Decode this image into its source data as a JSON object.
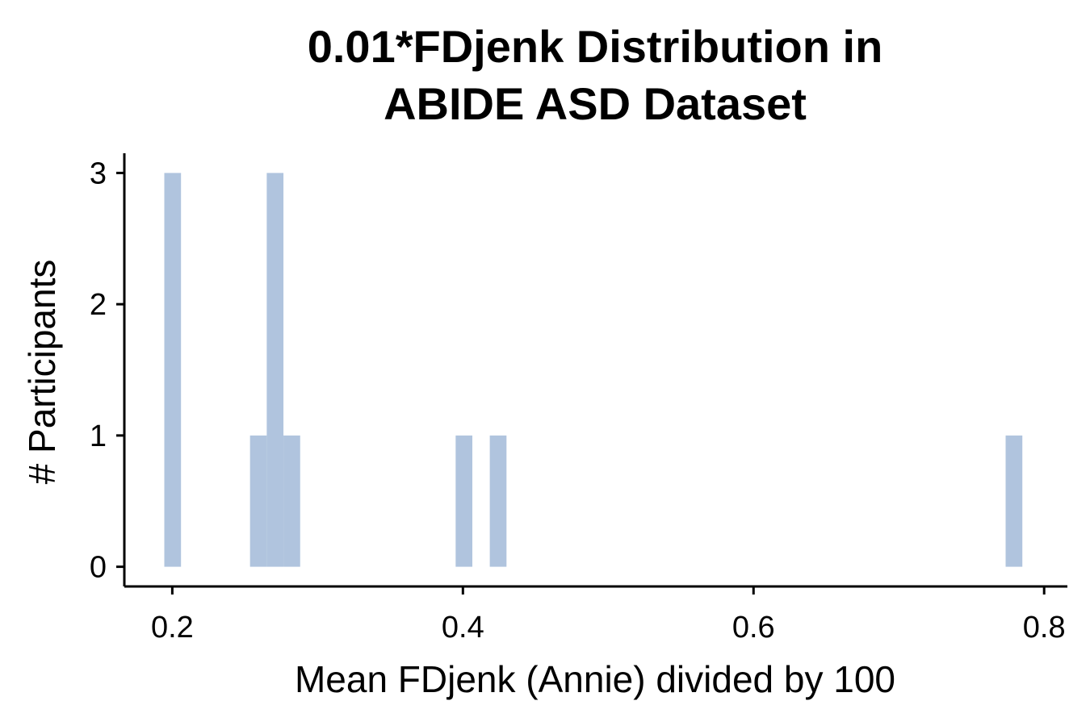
{
  "chart_data": {
    "type": "bar",
    "title_lines": [
      "0.01*FDjenk Distribution in",
      "ABIDE ASD Dataset"
    ],
    "xlabel": "Mean FDjenk (Annie) divided by 100",
    "ylabel": "# Participants",
    "xlim": [
      0.167,
      0.816
    ],
    "ylim": [
      -0.15,
      3.15
    ],
    "xticks": [
      {
        "value": 0.2,
        "label": "0.2"
      },
      {
        "value": 0.4,
        "label": "0.4"
      },
      {
        "value": 0.6,
        "label": "0.6"
      },
      {
        "value": 0.8,
        "label": "0.8"
      }
    ],
    "yticks": [
      {
        "value": 0,
        "label": "0"
      },
      {
        "value": 1,
        "label": "1"
      },
      {
        "value": 2,
        "label": "2"
      },
      {
        "value": 3,
        "label": "3"
      }
    ],
    "bar_color": "#b0c4de",
    "bin_width": 0.0115,
    "bins": [
      {
        "x": 0.1945,
        "count": 3
      },
      {
        "x": 0.2535,
        "count": 1
      },
      {
        "x": 0.265,
        "count": 3
      },
      {
        "x": 0.2765,
        "count": 1
      },
      {
        "x": 0.395,
        "count": 1
      },
      {
        "x": 0.4185,
        "count": 1
      },
      {
        "x": 0.7735,
        "count": 1
      }
    ],
    "grid": false,
    "legend": "none"
  }
}
